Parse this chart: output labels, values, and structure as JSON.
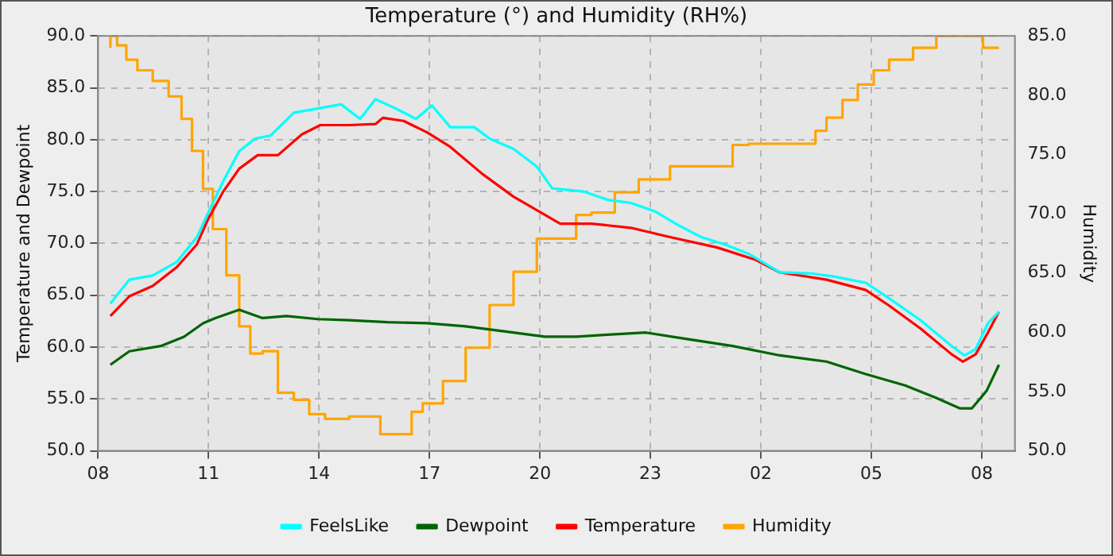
{
  "chart_data": {
    "type": "line",
    "title": "Temperature (°) and Humidity (RH%)",
    "ylabel": "Temperature and Dewpoint",
    "y2label": "Humidity",
    "xlim": [
      "--01-01T08:00",
      "--01-02T08:54"
    ],
    "xticks": [
      {
        "value": "--01-01T08:00",
        "label": "08"
      },
      {
        "value": "--01-01T11:00",
        "label": "11"
      },
      {
        "value": "--01-01T14:00",
        "label": "14"
      },
      {
        "value": "--01-01T17:00",
        "label": "17"
      },
      {
        "value": "--01-01T20:00",
        "label": "20"
      },
      {
        "value": "--01-01T23:00",
        "label": "23"
      },
      {
        "value": "--01-02T02:00",
        "label": "02"
      },
      {
        "value": "--01-02T05:00",
        "label": "05"
      },
      {
        "value": "--01-02T08:00",
        "label": "08"
      }
    ],
    "ylim": [
      50,
      90
    ],
    "yticks": [
      {
        "value": 50,
        "label": "50.0"
      },
      {
        "value": 55,
        "label": "55.0"
      },
      {
        "value": 60,
        "label": "60.0"
      },
      {
        "value": 65,
        "label": "65.0"
      },
      {
        "value": 70,
        "label": "70.0"
      },
      {
        "value": 75,
        "label": "75.0"
      },
      {
        "value": 80,
        "label": "80.0"
      },
      {
        "value": 85,
        "label": "85.0"
      },
      {
        "value": 90,
        "label": "90.0"
      }
    ],
    "y2lim": [
      50,
      85
    ],
    "y2ticks": [
      {
        "value": 50,
        "label": "50.0"
      },
      {
        "value": 55,
        "label": "55.0"
      },
      {
        "value": 60,
        "label": "60.0"
      },
      {
        "value": 65,
        "label": "65.0"
      },
      {
        "value": 70,
        "label": "70.0"
      },
      {
        "value": 75,
        "label": "75.0"
      },
      {
        "value": 80,
        "label": "80.0"
      },
      {
        "value": 85,
        "label": "85.0"
      }
    ],
    "grid": true,
    "legend": "bottom",
    "marker": "none",
    "line_style": "solid",
    "series": [
      {
        "name": "FeelsLike",
        "color": "#00ffff",
        "x": [
          "--01-01T08:20",
          "--01-01T08:51",
          "--01-01T09:29",
          "--01-01T10:08",
          "--01-01T10:41",
          "--01-01T10:59",
          "--01-01T11:24",
          "--01-01T11:50",
          "--01-01T12:16",
          "--01-01T12:41",
          "--01-01T13:19",
          "--01-01T13:58",
          "--01-01T14:36",
          "--01-01T15:07",
          "--01-01T15:32",
          "--01-01T16:05",
          "--01-01T16:38",
          "--01-01T17:04",
          "--01-01T17:34",
          "--01-01T18:13",
          "--01-01T18:38",
          "--01-01T19:17",
          "--01-01T19:55",
          "--01-01T20:20",
          "--01-01T21:11",
          "--01-01T21:50",
          "--01-01T22:28",
          "--01-01T23:07",
          "--01-01T23:44",
          "--01-02T00:23",
          "--01-02T01:01",
          "--01-02T01:40",
          "--01-02T02:31",
          "--01-02T03:22",
          "--01-02T03:59",
          "--01-02T04:51",
          "--01-02T05:29",
          "--01-02T06:20",
          "--01-02T07:11",
          "--01-02T07:32",
          "--01-02T07:50",
          "--01-02T08:10",
          "--01-02T08:28"
        ],
        "values": [
          64.2,
          66.5,
          66.9,
          68.2,
          70.6,
          72.9,
          76.0,
          78.9,
          80.1,
          80.4,
          82.6,
          83.0,
          83.4,
          82.0,
          83.9,
          83.0,
          82.0,
          83.3,
          81.2,
          81.2,
          80.1,
          79.1,
          77.4,
          75.3,
          75.0,
          74.2,
          73.9,
          73.1,
          71.8,
          70.6,
          69.9,
          69.0,
          67.2,
          67.1,
          66.8,
          66.2,
          64.7,
          62.6,
          60.1,
          59.2,
          59.8,
          62.3,
          63.4
        ]
      },
      {
        "name": "Dewpoint",
        "color": "#006400",
        "x": [
          "--01-01T08:20",
          "--01-01T08:51",
          "--01-01T09:42",
          "--01-01T10:20",
          "--01-01T10:51",
          "--01-01T11:11",
          "--01-01T11:50",
          "--01-01T12:28",
          "--01-01T13:07",
          "--01-01T13:58",
          "--01-01T14:49",
          "--01-01T15:52",
          "--01-01T16:56",
          "--01-01T17:59",
          "--01-01T19:04",
          "--01-01T20:08",
          "--01-01T20:59",
          "--01-01T21:50",
          "--01-01T22:53",
          "--01-01T23:58",
          "--01-02T01:14",
          "--01-02T02:31",
          "--01-02T03:47",
          "--01-02T04:51",
          "--01-02T05:55",
          "--01-02T06:46",
          "--01-02T07:24",
          "--01-02T07:44",
          "--01-02T08:08",
          "--01-02T08:28"
        ],
        "values": [
          58.3,
          59.6,
          60.1,
          61.0,
          62.3,
          62.8,
          63.6,
          62.8,
          63.0,
          62.7,
          62.6,
          62.4,
          62.3,
          62.0,
          61.5,
          61.0,
          61.0,
          61.2,
          61.4,
          60.8,
          60.1,
          59.2,
          58.6,
          57.4,
          56.3,
          55.1,
          54.1,
          54.1,
          55.8,
          58.3
        ]
      },
      {
        "name": "Temperature",
        "color": "#ff0000",
        "x": [
          "--01-01T08:20",
          "--01-01T08:51",
          "--01-01T09:29",
          "--01-01T10:08",
          "--01-01T10:41",
          "--01-01T10:59",
          "--01-01T11:24",
          "--01-01T11:50",
          "--01-01T12:20",
          "--01-01T12:53",
          "--01-01T13:32",
          "--01-01T14:02",
          "--01-01T14:49",
          "--01-01T15:32",
          "--01-01T15:44",
          "--01-01T16:18",
          "--01-01T16:56",
          "--01-01T17:34",
          "--01-01T18:26",
          "--01-01T19:17",
          "--01-01T19:55",
          "--01-01T20:33",
          "--01-01T21:24",
          "--01-01T22:28",
          "--01-01T23:32",
          "--01-02T00:49",
          "--01-02T01:52",
          "--01-02T02:31",
          "--01-02T03:47",
          "--01-02T04:51",
          "--01-02T05:29",
          "--01-02T06:20",
          "--01-02T07:11",
          "--01-02T07:29",
          "--01-02T07:50",
          "--01-02T08:10",
          "--01-02T08:28"
        ],
        "values": [
          63.0,
          64.9,
          65.9,
          67.7,
          69.9,
          72.3,
          75.0,
          77.2,
          78.5,
          78.5,
          80.5,
          81.4,
          81.4,
          81.5,
          82.1,
          81.8,
          80.7,
          79.3,
          76.7,
          74.5,
          73.2,
          71.9,
          71.9,
          71.5,
          70.6,
          69.6,
          68.4,
          67.2,
          66.5,
          65.5,
          64.0,
          61.8,
          59.3,
          58.6,
          59.3,
          61.4,
          63.4
        ]
      },
      {
        "name": "Humidity",
        "type": "step",
        "axis": "y2",
        "color": "#ffa500",
        "x": [
          "--01-01T08:20",
          "--01-01T08:31",
          "--01-01T08:46",
          "--01-01T09:04",
          "--01-01T09:29",
          "--01-01T09:55",
          "--01-01T10:16",
          "--01-01T10:33",
          "--01-01T10:51",
          "--01-01T11:07",
          "--01-01T11:29",
          "--01-01T11:50",
          "--01-01T12:08",
          "--01-01T12:28",
          "--01-01T12:53",
          "--01-01T13:19",
          "--01-01T13:44",
          "--01-01T14:10",
          "--01-01T14:49",
          "--01-01T15:40",
          "--01-01T16:05",
          "--01-01T16:31",
          "--01-01T16:49",
          "--01-01T17:22",
          "--01-01T17:59",
          "--01-01T18:38",
          "--01-01T19:17",
          "--01-01T19:55",
          "--01-01T20:20",
          "--01-01T20:59",
          "--01-01T21:24",
          "--01-01T22:02",
          "--01-01T22:41",
          "--01-01T23:32",
          "--01-01T23:58",
          "--01-02T01:14",
          "--01-02T01:40",
          "--01-02T02:56",
          "--01-02T03:29",
          "--01-02T03:47",
          "--01-02T04:13",
          "--01-02T04:38",
          "--01-02T05:04",
          "--01-02T05:29",
          "--01-02T06:08",
          "--01-02T06:46",
          "--01-02T06:59",
          "--01-02T08:02",
          "--01-02T08:08",
          "--01-02T08:28"
        ],
        "values": [
          84.0,
          85.0,
          84.2,
          83.0,
          82.1,
          81.2,
          79.9,
          78.0,
          75.3,
          72.1,
          68.7,
          64.8,
          60.5,
          58.2,
          58.4,
          54.9,
          54.3,
          53.1,
          52.7,
          52.9,
          51.4,
          51.4,
          53.3,
          54.0,
          55.9,
          58.7,
          62.3,
          65.1,
          67.9,
          67.9,
          69.9,
          70.1,
          71.8,
          72.9,
          74.0,
          74.0,
          75.8,
          75.9,
          75.9,
          77.0,
          78.1,
          79.6,
          80.9,
          82.1,
          83.0,
          84.0,
          85.0,
          85.0,
          84.0,
          84.0
        ]
      }
    ]
  }
}
